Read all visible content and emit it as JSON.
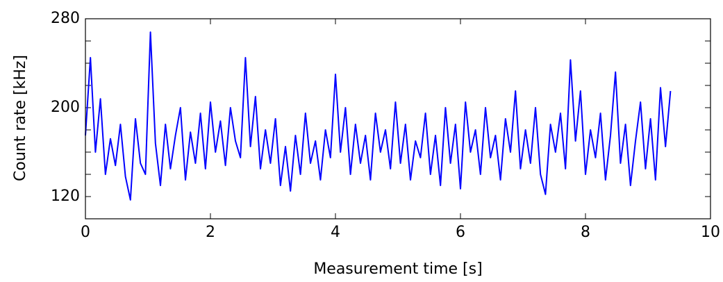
{
  "chart_data": {
    "type": "line",
    "xlabel": "Measurement time [s]",
    "ylabel": "Count rate [kHz]",
    "xlim": [
      0,
      10
    ],
    "xticks": [
      0,
      2,
      4,
      6,
      8,
      10
    ],
    "ylim": [
      100,
      280
    ],
    "yticks": [
      120,
      200,
      280
    ],
    "yticks_minor": [
      140,
      160,
      180,
      220,
      240,
      260
    ],
    "series": [
      {
        "color": "#0000ff",
        "x": [
          0,
          0.08,
          0.16,
          0.24,
          0.32,
          0.4,
          0.48,
          0.56,
          0.64,
          0.72,
          0.8,
          0.88,
          0.96,
          1.04,
          1.12,
          1.2,
          1.28,
          1.36,
          1.44,
          1.52,
          1.6,
          1.68,
          1.76,
          1.84,
          1.92,
          2.0,
          2.08,
          2.16,
          2.24,
          2.32,
          2.4,
          2.48,
          2.56,
          2.64,
          2.72,
          2.8,
          2.88,
          2.96,
          3.04,
          3.12,
          3.2,
          3.28,
          3.36,
          3.44,
          3.52,
          3.6,
          3.68,
          3.76,
          3.84,
          3.92,
          4.0,
          4.08,
          4.16,
          4.24,
          4.32,
          4.4,
          4.48,
          4.56,
          4.64,
          4.72,
          4.8,
          4.88,
          4.96,
          5.04,
          5.12,
          5.2,
          5.28,
          5.36,
          5.44,
          5.52,
          5.6,
          5.68,
          5.76,
          5.84,
          5.92,
          6.0,
          6.08,
          6.16,
          6.24,
          6.32,
          6.4,
          6.48,
          6.56,
          6.64,
          6.72,
          6.8,
          6.88,
          6.96,
          7.04,
          7.12,
          7.2,
          7.28,
          7.36,
          7.44,
          7.52,
          7.6,
          7.68,
          7.76,
          7.84,
          7.92,
          8.0,
          8.08,
          8.16,
          8.24,
          8.32,
          8.4,
          8.48,
          8.56,
          8.64,
          8.72,
          8.8,
          8.88,
          8.96,
          9.04,
          9.12,
          9.2,
          9.28,
          9.36
        ],
        "values": [
          175,
          245,
          160,
          208,
          140,
          172,
          148,
          185,
          138,
          117,
          190,
          150,
          140,
          268,
          168,
          130,
          185,
          145,
          175,
          200,
          135,
          178,
          150,
          195,
          145,
          205,
          160,
          188,
          148,
          200,
          170,
          155,
          245,
          165,
          210,
          145,
          180,
          150,
          190,
          130,
          165,
          125,
          175,
          140,
          195,
          150,
          170,
          135,
          180,
          155,
          230,
          160,
          200,
          140,
          185,
          150,
          175,
          135,
          195,
          160,
          180,
          145,
          205,
          150,
          185,
          135,
          170,
          155,
          195,
          140,
          175,
          130,
          200,
          150,
          185,
          127,
          205,
          160,
          180,
          140,
          200,
          155,
          175,
          135,
          190,
          160,
          215,
          145,
          180,
          150,
          200,
          140,
          122,
          185,
          160,
          195,
          145,
          243,
          170,
          215,
          140,
          180,
          155,
          195,
          135,
          175,
          232,
          150,
          185,
          130,
          170,
          205,
          145,
          190,
          135,
          218,
          165,
          215
        ]
      }
    ]
  }
}
